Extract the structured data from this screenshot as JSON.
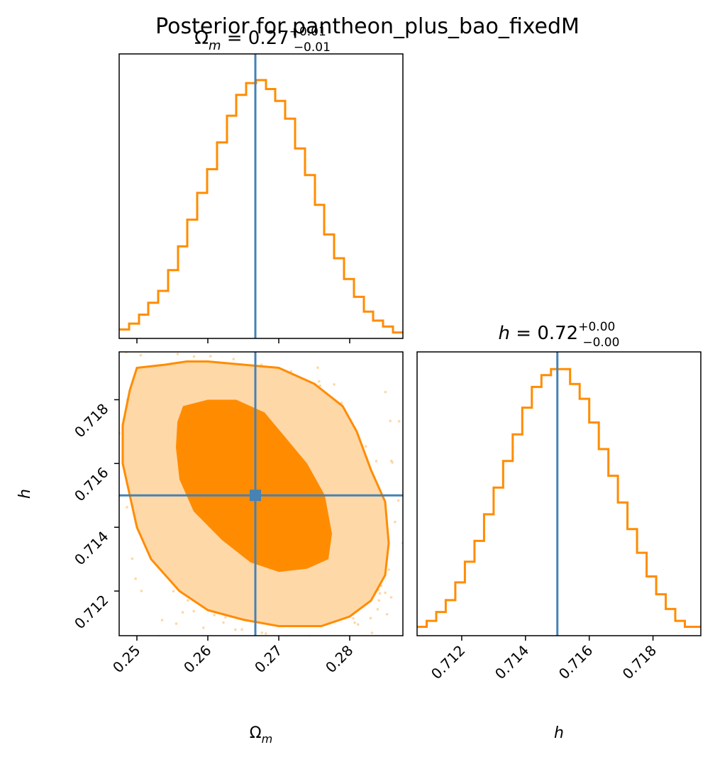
{
  "figure": {
    "suptitle": "Posterior for pantheon_plus_bao_fixedM"
  },
  "colors": {
    "posterior": "#ff8c00",
    "contour_outer_fill": "#ffd8a8",
    "truth": "#4682b4",
    "frame": "#000000"
  },
  "chart_data": [
    {
      "type": "histogram",
      "panel": "Omega_m marginal",
      "title_param": "Ω",
      "title_sub": "m",
      "title_value": " = 0.27",
      "title_plus": "+0.01",
      "title_minus": "−0.01",
      "xlim": [
        0.2475,
        0.2875
      ],
      "bins": [
        0.2475,
        0.2489,
        0.2503,
        0.2516,
        0.253,
        0.2544,
        0.2558,
        0.2571,
        0.2585,
        0.2599,
        0.2613,
        0.2627,
        0.264,
        0.2654,
        0.2668,
        0.2682,
        0.2695,
        0.2709,
        0.2723,
        0.2737,
        0.2751,
        0.2764,
        0.2778,
        0.2792,
        0.2806,
        0.282,
        0.2833,
        0.2847,
        0.2861,
        0.2875
      ],
      "relative_density": [
        0.03,
        0.05,
        0.08,
        0.12,
        0.16,
        0.23,
        0.31,
        0.4,
        0.49,
        0.57,
        0.66,
        0.75,
        0.82,
        0.86,
        0.87,
        0.84,
        0.8,
        0.74,
        0.64,
        0.55,
        0.45,
        0.35,
        0.27,
        0.2,
        0.14,
        0.09,
        0.06,
        0.04,
        0.02
      ],
      "truth": 0.2667
    },
    {
      "type": "contour",
      "panel": "Omega_m vs h joint",
      "xlabel": "Ω",
      "xlabel_sub": "m",
      "ylabel": "h",
      "xlim": [
        0.2475,
        0.2875
      ],
      "ylim": [
        0.7106,
        0.7195
      ],
      "xticks": [
        "0.25",
        "0.26",
        "0.27",
        "0.28"
      ],
      "yticks": [
        "0.712",
        "0.714",
        "0.716",
        "0.718"
      ],
      "xtick_values": [
        0.25,
        0.26,
        0.27,
        0.28
      ],
      "ytick_values": [
        0.712,
        0.714,
        0.716,
        0.718
      ],
      "contour_levels": [
        {
          "name": "outer",
          "points": [
            [
              0.25,
              0.719
            ],
            [
              0.254,
              0.7191
            ],
            [
              0.257,
              0.7192
            ],
            [
              0.26,
              0.7192
            ],
            [
              0.265,
              0.7191
            ],
            [
              0.27,
              0.719
            ],
            [
              0.275,
              0.7185
            ],
            [
              0.279,
              0.7178
            ],
            [
              0.281,
              0.717
            ],
            [
              0.283,
              0.7158
            ],
            [
              0.285,
              0.7148
            ],
            [
              0.2855,
              0.7135
            ],
            [
              0.285,
              0.7125
            ],
            [
              0.283,
              0.7117
            ],
            [
              0.28,
              0.7112
            ],
            [
              0.276,
              0.7109
            ],
            [
              0.27,
              0.7109
            ],
            [
              0.265,
              0.7111
            ],
            [
              0.26,
              0.7114
            ],
            [
              0.256,
              0.712
            ],
            [
              0.252,
              0.713
            ],
            [
              0.25,
              0.714
            ],
            [
              0.249,
              0.715
            ],
            [
              0.248,
              0.716
            ],
            [
              0.248,
              0.7172
            ],
            [
              0.249,
              0.7183
            ]
          ]
        },
        {
          "name": "inner",
          "points": [
            [
              0.2565,
              0.7178
            ],
            [
              0.26,
              0.718
            ],
            [
              0.264,
              0.718
            ],
            [
              0.268,
              0.7176
            ],
            [
              0.271,
              0.7168
            ],
            [
              0.274,
              0.716
            ],
            [
              0.2765,
              0.715
            ],
            [
              0.2775,
              0.7138
            ],
            [
              0.277,
              0.713
            ],
            [
              0.274,
              0.7127
            ],
            [
              0.27,
              0.7126
            ],
            [
              0.266,
              0.7129
            ],
            [
              0.262,
              0.7136
            ],
            [
              0.258,
              0.7145
            ],
            [
              0.256,
              0.7155
            ],
            [
              0.2555,
              0.7165
            ],
            [
              0.2557,
              0.7173
            ]
          ]
        }
      ],
      "truth": [
        0.2667,
        0.715
      ]
    },
    {
      "type": "histogram",
      "panel": "h marginal",
      "title_param": "h",
      "title_value": " = 0.72",
      "title_plus": "+0.00",
      "title_minus": "−0.00",
      "xlabel": "h",
      "xlim": [
        0.7106,
        0.7195
      ],
      "xticks": [
        "0.712",
        "0.714",
        "0.716",
        "0.718"
      ],
      "xtick_values": [
        0.712,
        0.714,
        0.716,
        0.718
      ],
      "bins": [
        0.7106,
        0.7109,
        0.7112,
        0.7115,
        0.7118,
        0.7121,
        0.7124,
        0.7127,
        0.713,
        0.7133,
        0.7136,
        0.7139,
        0.7142,
        0.7145,
        0.7148,
        0.7151,
        0.7154,
        0.7157,
        0.716,
        0.7163,
        0.7166,
        0.7169,
        0.7172,
        0.7175,
        0.7178,
        0.7181,
        0.7184,
        0.7187,
        0.719,
        0.7195
      ],
      "relative_density": [
        0.03,
        0.05,
        0.08,
        0.12,
        0.18,
        0.25,
        0.32,
        0.41,
        0.5,
        0.59,
        0.68,
        0.77,
        0.84,
        0.88,
        0.9,
        0.9,
        0.85,
        0.8,
        0.72,
        0.63,
        0.54,
        0.45,
        0.36,
        0.28,
        0.2,
        0.14,
        0.09,
        0.05,
        0.03
      ],
      "truth": 0.715
    }
  ]
}
